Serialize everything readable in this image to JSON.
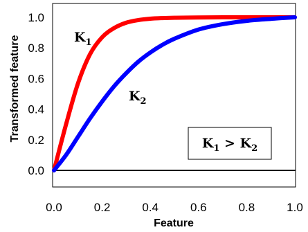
{
  "chart_data": {
    "type": "line",
    "xlabel": "Feature",
    "ylabel": "Transformed feature",
    "xlim": [
      0.0,
      1.0
    ],
    "ylim": [
      0.0,
      1.08
    ],
    "xticks": [
      "0.0",
      "0.2",
      "0.4",
      "0.6",
      "0.8",
      "1.0"
    ],
    "yticks": [
      "0.0",
      "0.2",
      "0.4",
      "0.6",
      "0.8",
      "1.0"
    ],
    "grid": false,
    "x": [
      0.0,
      0.05,
      0.1,
      0.15,
      0.2,
      0.25,
      0.3,
      0.35,
      0.4,
      0.45,
      0.5,
      0.6,
      0.7,
      0.8,
      0.9,
      1.0
    ],
    "series": [
      {
        "name": "K1",
        "label_main": "K",
        "label_sub": "1",
        "color": "#ff0000",
        "values": [
          0.0,
          0.3,
          0.57,
          0.76,
          0.87,
          0.93,
          0.965,
          0.982,
          0.991,
          0.995,
          0.997,
          0.999,
          1.0,
          1.0,
          1.0,
          1.0
        ]
      },
      {
        "name": "K2",
        "label_main": "K",
        "label_sub": "2",
        "color": "#0000ff",
        "values": [
          0.0,
          0.1,
          0.22,
          0.34,
          0.45,
          0.55,
          0.635,
          0.71,
          0.77,
          0.82,
          0.86,
          0.92,
          0.955,
          0.977,
          0.99,
          1.0
        ]
      }
    ],
    "annotation": {
      "main1": "K",
      "sub1": "1",
      "op": " > ",
      "main2": "K",
      "sub2": "2"
    }
  }
}
